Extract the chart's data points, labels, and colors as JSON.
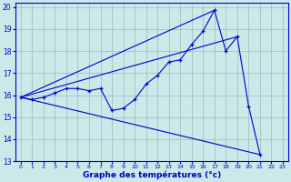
{
  "xlabel": "Graphe des températures (°c)",
  "xlim": [
    -0.5,
    23.5
  ],
  "ylim": [
    13,
    20.2
  ],
  "yticks": [
    13,
    14,
    15,
    16,
    17,
    18,
    19,
    20
  ],
  "xticks": [
    0,
    1,
    2,
    3,
    4,
    5,
    6,
    7,
    8,
    9,
    10,
    11,
    12,
    13,
    14,
    15,
    16,
    17,
    18,
    19,
    20,
    21,
    22,
    23
  ],
  "xlabels": [
    "0",
    "1",
    "2",
    "3",
    "4",
    "5",
    "6",
    "7",
    "8",
    "9",
    "10",
    "11",
    "12",
    "13",
    "14",
    "15",
    "16",
    "17",
    "18",
    "19",
    "20",
    "21",
    "22",
    "23"
  ],
  "bg_color": "#cce8e8",
  "line_color": "#0000cc",
  "grid_color": "#99bbbb",
  "main_series": {
    "x": [
      0,
      1,
      2,
      3,
      4,
      5,
      6,
      7,
      8,
      9,
      10,
      11,
      12,
      13,
      14,
      15,
      16,
      17,
      18,
      19,
      20,
      21
    ],
    "y": [
      15.9,
      15.8,
      15.9,
      16.1,
      16.3,
      16.3,
      16.2,
      16.3,
      15.3,
      15.4,
      15.8,
      16.5,
      16.9,
      17.5,
      17.6,
      18.3,
      18.9,
      19.85,
      18.0,
      18.65,
      15.5,
      13.3
    ]
  },
  "line1": {
    "x": [
      0,
      21
    ],
    "y": [
      15.9,
      13.3
    ]
  },
  "line2": {
    "x": [
      0,
      19
    ],
    "y": [
      15.9,
      18.65
    ]
  },
  "line3": {
    "x": [
      0,
      17
    ],
    "y": [
      15.9,
      19.85
    ]
  }
}
